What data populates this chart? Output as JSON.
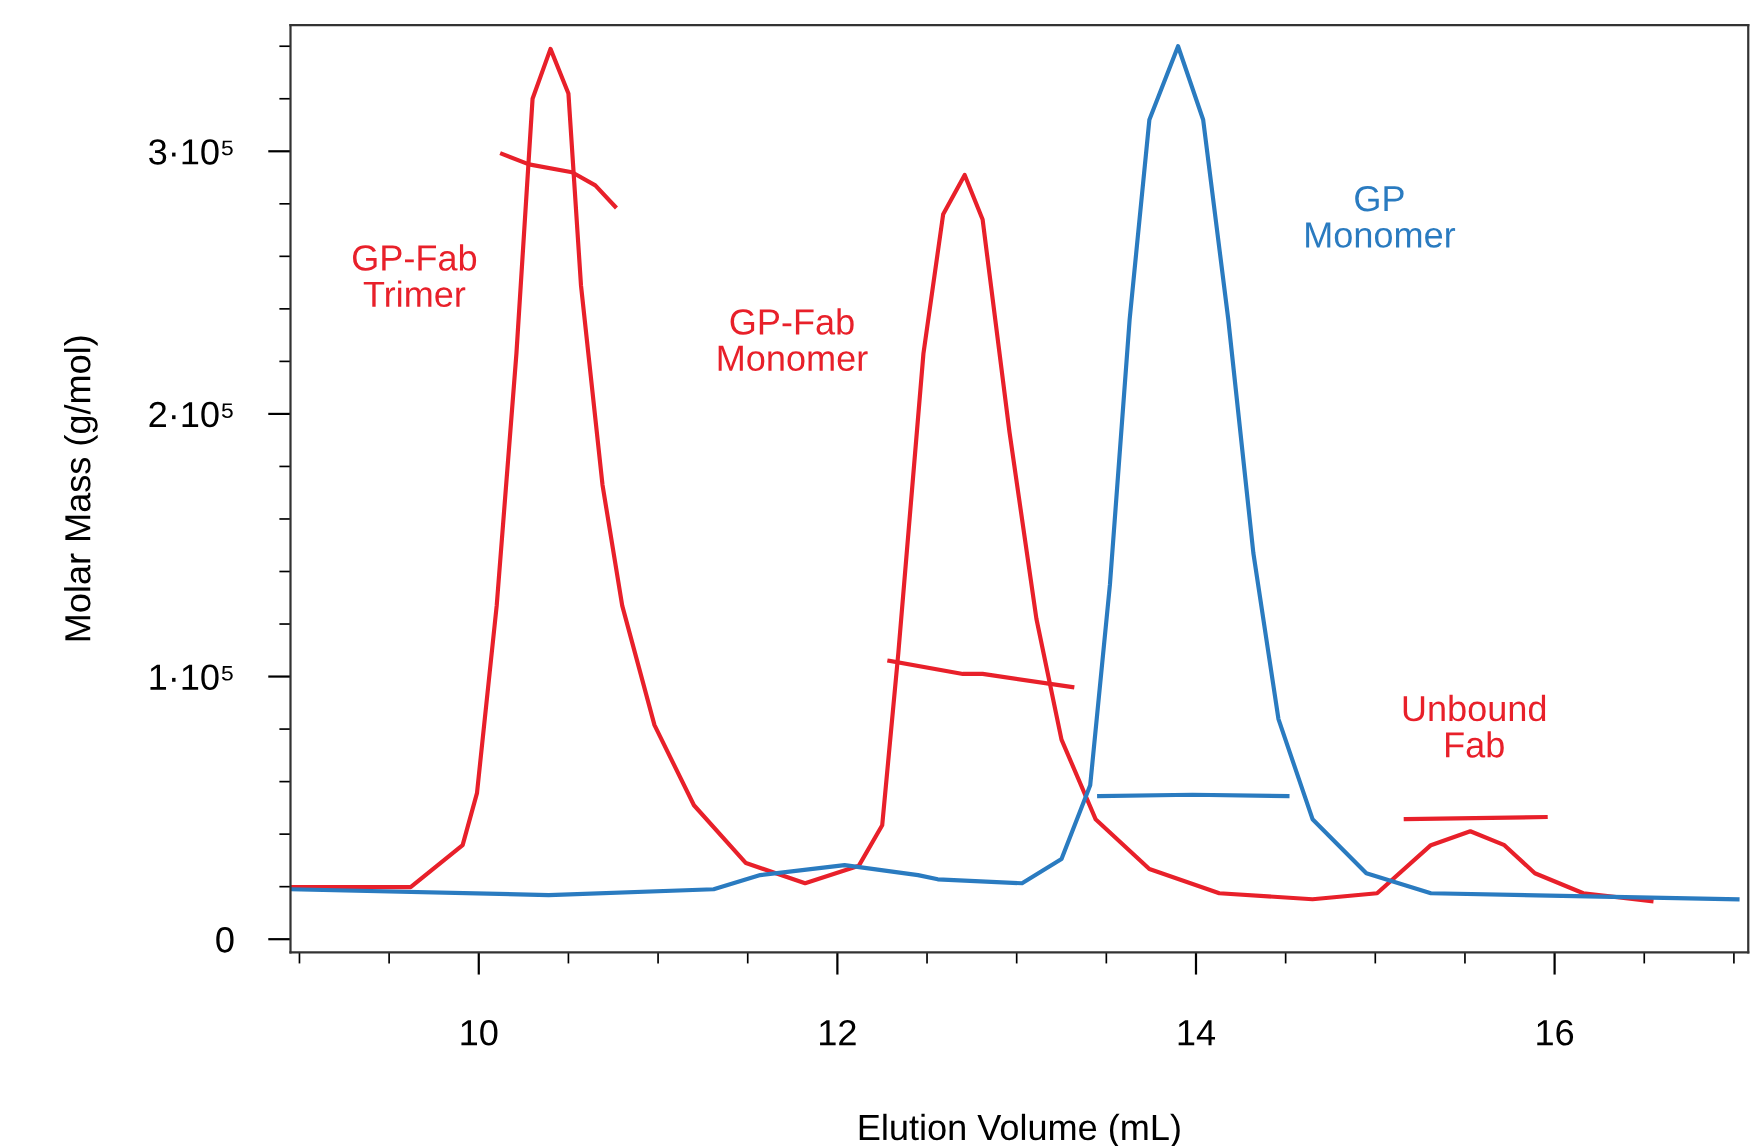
{
  "chart_data": {
    "type": "line",
    "xlabel": "Elution Volume (mL)",
    "ylabel": "Molar Mass (g/mol)",
    "xlim": [
      8.95,
      17.08
    ],
    "ylim": [
      -5000,
      348000
    ],
    "xticks": [
      {
        "value": 9,
        "label": null
      },
      {
        "value": 9.5,
        "label": null
      },
      10,
      {
        "value": 10.5,
        "label": null
      },
      {
        "value": 11,
        "label": null
      },
      {
        "value": 11.5,
        "label": null
      },
      12,
      {
        "value": 12.5,
        "label": null
      },
      {
        "value": 13,
        "label": null
      },
      {
        "value": 13.5,
        "label": null
      },
      14,
      {
        "value": 14.5,
        "label": null
      },
      {
        "value": 15,
        "label": null
      },
      {
        "value": 15.5,
        "label": null
      },
      16,
      {
        "value": 16.5,
        "label": null
      },
      {
        "value": 17,
        "label": null
      }
    ],
    "yticks": [
      0,
      {
        "value": 20000,
        "label": null
      },
      {
        "value": 40000,
        "label": null
      },
      {
        "value": 60000,
        "label": null
      },
      {
        "value": 80000,
        "label": null
      },
      {
        "value": 100000,
        "label": "1·10⁵"
      },
      {
        "value": 120000,
        "label": null
      },
      {
        "value": 140000,
        "label": null
      },
      {
        "value": 160000,
        "label": null
      },
      {
        "value": 180000,
        "label": null
      },
      {
        "value": 200000,
        "label": "2·10⁵"
      },
      {
        "value": 220000,
        "label": null
      },
      {
        "value": 240000,
        "label": null
      },
      {
        "value": 260000,
        "label": null
      },
      {
        "value": 280000,
        "label": null
      },
      {
        "value": 300000,
        "label": "3·10⁵"
      },
      {
        "value": 320000,
        "label": null
      },
      {
        "value": 340000,
        "label": null
      }
    ],
    "grid": false,
    "legend": false,
    "marker": "none",
    "line_style": "solid",
    "series": [
      {
        "color": "#e8202a",
        "x": [
          8.95,
          9.62,
          9.91,
          9.99,
          10.1,
          10.21,
          10.3,
          10.4,
          10.5,
          10.57,
          10.69,
          10.8,
          10.98,
          11.2,
          11.49,
          11.82,
          12.12,
          12.25,
          12.34,
          12.48,
          12.59,
          12.71,
          12.81,
          12.96,
          13.11,
          13.25,
          13.44,
          13.74,
          14.13,
          14.65,
          15.01,
          15.31,
          15.53,
          15.72,
          15.89,
          16.16,
          16.54
        ],
        "values": [
          19800,
          19800,
          35800,
          55600,
          127000,
          223000,
          320000,
          339000,
          322000,
          249000,
          173000,
          127000,
          81500,
          51000,
          29000,
          21300,
          28000,
          43400,
          109000,
          223000,
          276000,
          291000,
          274000,
          193000,
          122000,
          76000,
          45700,
          26700,
          17500,
          15200,
          17500,
          35800,
          41100,
          35800,
          25100,
          17500,
          14500
        ]
      },
      {
        "name": "GP\nMonomer",
        "color": "#2a7bc0",
        "x": [
          8.95,
          10.39,
          11.31,
          11.57,
          12.04,
          12.45,
          12.56,
          13.03,
          13.25,
          13.41,
          13.52,
          13.63,
          13.74,
          13.9,
          14.04,
          14.18,
          14.32,
          14.46,
          14.65,
          14.95,
          15.31,
          17.02
        ],
        "values": [
          19000,
          16800,
          19000,
          24400,
          28200,
          24400,
          22800,
          21300,
          30500,
          58600,
          135000,
          236000,
          312000,
          340000,
          312000,
          236000,
          147000,
          83800,
          45700,
          25100,
          17500,
          15200
        ]
      },
      {
        "color": "#e8202a",
        "x": [
          10.13,
          10.28,
          10.52,
          10.65,
          10.76
        ],
        "values": [
          299000,
          295000,
          292000,
          287000,
          279000
        ]
      },
      {
        "color": "#e8202a",
        "x": [
          12.29,
          12.7,
          12.81,
          13.31
        ],
        "values": [
          106000,
          101000,
          101000,
          96000
        ]
      },
      {
        "color": "#2a7bc0",
        "x": [
          13.46,
          13.98,
          14.51
        ],
        "values": [
          54500,
          55000,
          54500
        ]
      },
      {
        "color": "#e8202a",
        "x": [
          15.17,
          15.95
        ],
        "values": [
          45700,
          46500
        ]
      }
    ],
    "annotations": [
      "GP-Fab\nTrimer",
      "GP-Fab\nMonomer",
      "Unbound\nFab"
    ]
  }
}
